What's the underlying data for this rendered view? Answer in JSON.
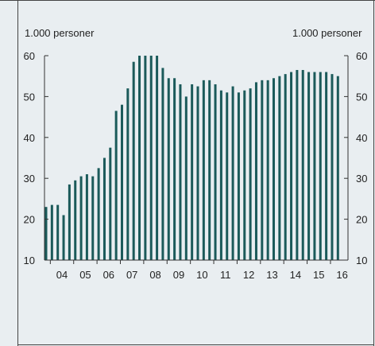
{
  "chart_data": {
    "type": "bar",
    "left_unit_label": "1.000 personer",
    "right_unit_label": "1.000 personer",
    "ylim": [
      10,
      60
    ],
    "yticks": [
      10,
      20,
      30,
      40,
      50,
      60
    ],
    "xtick_labels": [
      "04",
      "05",
      "06",
      "07",
      "08",
      "09",
      "10",
      "11",
      "12",
      "13",
      "14",
      "15",
      "16"
    ],
    "xstart": 2003.75,
    "xend": 2016.75,
    "series": [
      {
        "x": [
          2003.75,
          2004.0,
          2004.25,
          2004.5,
          2004.75,
          2005.0,
          2005.25,
          2005.5,
          2005.75,
          2006.0,
          2006.25,
          2006.5,
          2006.75,
          2007.0,
          2007.25,
          2007.5,
          2007.75,
          2008.0,
          2008.25,
          2008.5,
          2008.75,
          2009.0,
          2009.25,
          2009.5,
          2009.75,
          2010.0,
          2010.25,
          2010.5,
          2010.75,
          2011.0,
          2011.25,
          2011.5,
          2011.75,
          2012.0,
          2012.25,
          2012.5,
          2012.75,
          2013.0,
          2013.25,
          2013.5,
          2013.75,
          2014.0,
          2014.25,
          2014.5,
          2014.75,
          2015.0,
          2015.25,
          2015.5,
          2015.75,
          2016.0,
          2016.25
        ],
        "values": [
          23,
          23.5,
          23.5,
          21,
          28.5,
          29.5,
          30.5,
          31,
          30.5,
          32.5,
          35,
          37.5,
          46.5,
          48,
          52,
          58.5,
          60,
          60,
          60,
          60,
          57,
          54.5,
          54.5,
          53,
          50,
          53,
          52.5,
          54,
          54,
          53,
          51.5,
          51,
          52.5,
          51,
          51.5,
          52,
          53.5,
          54,
          54,
          54.5,
          55,
          55.5,
          56,
          56.5,
          56.5,
          56,
          56,
          56,
          56,
          55.5,
          55
        ]
      }
    ]
  }
}
